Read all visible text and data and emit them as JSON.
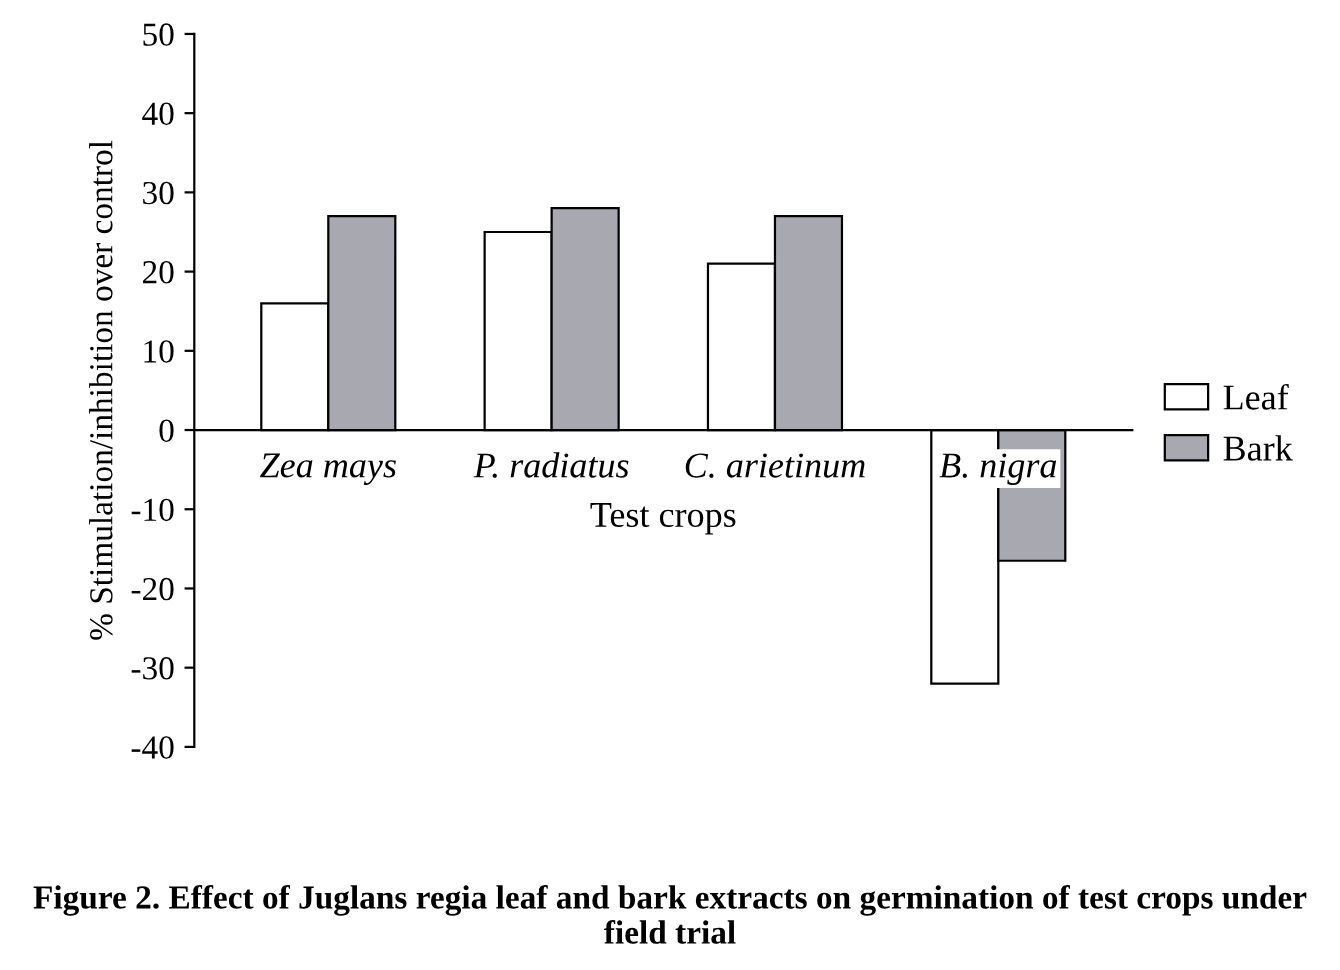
{
  "chart_data": {
    "type": "bar",
    "categories": [
      "Zea mays",
      "P. radiatus",
      "C. arietinum",
      "B. nigra"
    ],
    "series": [
      {
        "name": "Leaf",
        "color": "#ffffff",
        "values": [
          16,
          25,
          21,
          -32
        ]
      },
      {
        "name": "Bark",
        "color": "#a8a8b0",
        "values": [
          27,
          28,
          27,
          -16.5
        ]
      }
    ],
    "ylim": [
      -40,
      50
    ],
    "yticks": [
      -40,
      -30,
      -20,
      -10,
      0,
      10,
      20,
      30,
      40,
      50
    ],
    "xlabel": "Test crops",
    "ylabel": "% Stimulation/inhibition over control",
    "legend": "right",
    "grid": false,
    "annotations": [
      "Figure 2. Effect of Juglans regia leaf and bark extracts on germination of test crops under field trial"
    ]
  }
}
